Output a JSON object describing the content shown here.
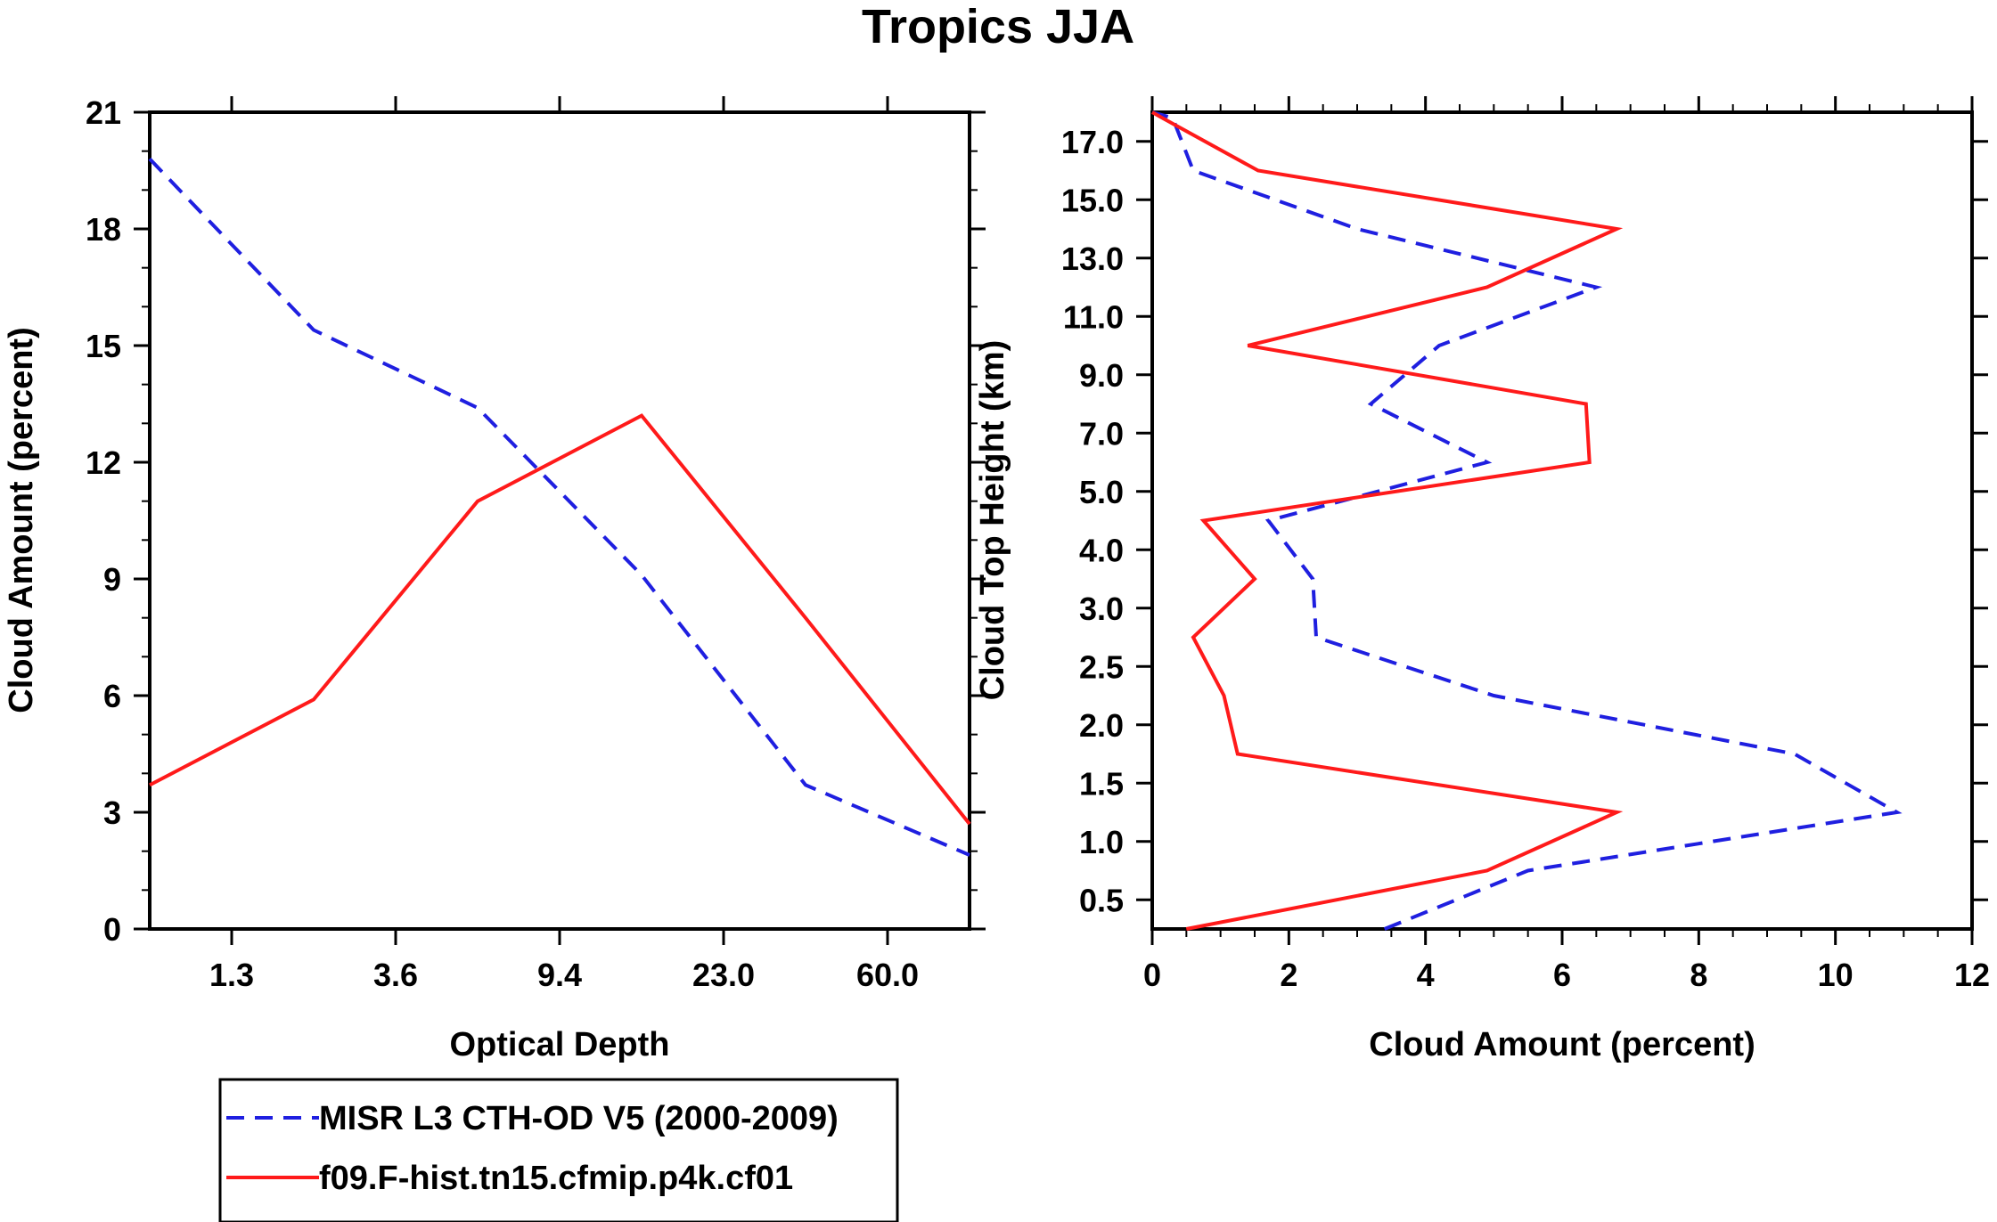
{
  "title": "Tropics JJA",
  "colors": {
    "obs": "#1f1fe0",
    "model": "#ff1a1a",
    "axis": "#000000"
  },
  "legend": {
    "entries": [
      {
        "label": "MISR L3 CTH-OD V5 (2000-2009)",
        "style": "dashed",
        "color": "#1f1fe0"
      },
      {
        "label": "f09.F-hist.tn15.cfmip.p4k.cf01",
        "style": "solid",
        "color": "#ff1a1a"
      }
    ]
  },
  "chart_data": [
    {
      "type": "line",
      "xlabel": "Optical Depth",
      "ylabel": "Cloud Amount (percent)",
      "xlim": [
        0,
        7
      ],
      "ylim": [
        0,
        21
      ],
      "xticks": [
        {
          "v": 0.7,
          "label": "1.3"
        },
        {
          "v": 2.1,
          "label": "3.6"
        },
        {
          "v": 3.5,
          "label": "9.4"
        },
        {
          "v": 4.9,
          "label": "23.0"
        },
        {
          "v": 6.3,
          "label": "60.0"
        }
      ],
      "yticks": [
        0,
        3,
        6,
        9,
        12,
        15,
        18,
        21
      ],
      "series": [
        {
          "name": "MISR L3 CTH-OD V5 (2000-2009)",
          "style": "dashed",
          "x": [
            0,
            1.4,
            2.8,
            4.2,
            5.6,
            7.0
          ],
          "y": [
            19.8,
            15.4,
            13.4,
            9.1,
            3.7,
            1.9
          ]
        },
        {
          "name": "f09.F-hist.tn15.cfmip.p4k.cf01",
          "style": "solid",
          "x": [
            0,
            1.4,
            2.8,
            4.2,
            5.6,
            7.0
          ],
          "y": [
            3.7,
            5.9,
            11.0,
            13.2,
            8.0,
            2.7
          ]
        }
      ]
    },
    {
      "type": "line",
      "xlabel": "Cloud Amount (percent)",
      "ylabel": "Cloud Top Height (km)",
      "xlim": [
        0,
        12
      ],
      "ylim": [
        0,
        14
      ],
      "xticks": [
        0,
        2,
        4,
        6,
        8,
        10,
        12
      ],
      "yticks": [
        {
          "v": 0.5,
          "label": "0.5"
        },
        {
          "v": 1.5,
          "label": "1.0"
        },
        {
          "v": 2.5,
          "label": "1.5"
        },
        {
          "v": 3.5,
          "label": "2.0"
        },
        {
          "v": 4.5,
          "label": "2.5"
        },
        {
          "v": 5.5,
          "label": "3.0"
        },
        {
          "v": 6.5,
          "label": "4.0"
        },
        {
          "v": 7.5,
          "label": "5.0"
        },
        {
          "v": 8.5,
          "label": "7.0"
        },
        {
          "v": 9.5,
          "label": "9.0"
        },
        {
          "v": 10.5,
          "label": "11.0"
        },
        {
          "v": 11.5,
          "label": "13.0"
        },
        {
          "v": 12.5,
          "label": "15.0"
        },
        {
          "v": 13.5,
          "label": "17.0"
        }
      ],
      "series": [
        {
          "name": "MISR L3 CTH-OD V5 (2000-2009)",
          "style": "dashed",
          "x": [
            3.4,
            5.5,
            10.9,
            9.4,
            5.0,
            2.4,
            2.35,
            1.7,
            4.9,
            3.2,
            4.2,
            6.5,
            3.0,
            0.6,
            0.3,
            0.0
          ],
          "y": [
            0.0,
            1.0,
            2.0,
            3.0,
            4.0,
            5.0,
            6.0,
            7.0,
            8.0,
            9.0,
            10.0,
            11.0,
            12.0,
            13.0,
            13.9,
            14.0
          ]
        },
        {
          "name": "f09.F-hist.tn15.cfmip.p4k.cf01",
          "style": "solid",
          "x": [
            0.5,
            4.9,
            6.8,
            1.25,
            1.05,
            0.6,
            1.5,
            0.75,
            6.4,
            6.35,
            1.4,
            4.9,
            6.8,
            1.55,
            0.15,
            0.0
          ],
          "y": [
            0.0,
            1.0,
            2.0,
            3.0,
            4.0,
            5.0,
            6.0,
            7.0,
            8.0,
            9.0,
            10.0,
            11.0,
            12.0,
            13.0,
            13.9,
            14.0
          ]
        }
      ]
    }
  ]
}
